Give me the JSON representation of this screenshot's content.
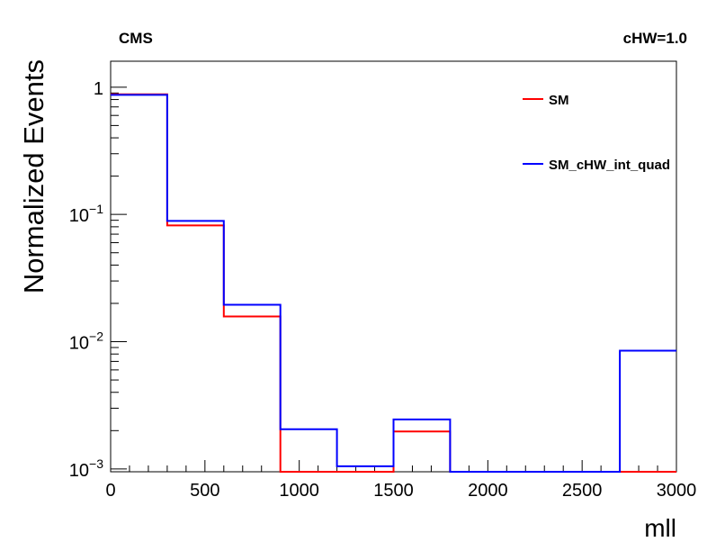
{
  "chart_data": {
    "type": "histogram",
    "y_scale": "log",
    "xlim": [
      0,
      3000
    ],
    "ylim": [
      0.00095,
      1.6
    ],
    "xlabel": "mll",
    "ylabel": "Normalized Events",
    "top_left_label": "CMS",
    "top_right_label": "cHW=1.0",
    "x_tick_labels": [
      "0",
      "500",
      "1000",
      "1500",
      "2000",
      "2500",
      "3000"
    ],
    "x_tick_values": [
      0,
      500,
      1000,
      1500,
      2000,
      2500,
      3000
    ],
    "y_tick_labels": [
      {
        "base": "1",
        "exp": ""
      },
      {
        "base": "10",
        "exp": "−1"
      },
      {
        "base": "10",
        "exp": "−2"
      },
      {
        "base": "10",
        "exp": "−3"
      }
    ],
    "y_tick_values": [
      1,
      0.1,
      0.01,
      0.001
    ],
    "bin_edges": [
      0,
      300,
      600,
      900,
      1200,
      1500,
      1800,
      2100,
      2400,
      2700,
      3000
    ],
    "legend_position": "top-right",
    "series": [
      {
        "name": "SM",
        "color": "#ff0000",
        "values": [
          0.88,
          0.082,
          0.0158,
          0.00095,
          0.00095,
          0.00197,
          0.00095,
          0.00095,
          0.00095,
          0.00095
        ]
      },
      {
        "name": "SM_cHW_int_quad",
        "color": "#0000ff",
        "values": [
          0.87,
          0.089,
          0.0195,
          0.00205,
          0.00105,
          0.00245,
          0.00095,
          0.00095,
          0.00095,
          0.0085
        ]
      }
    ]
  }
}
